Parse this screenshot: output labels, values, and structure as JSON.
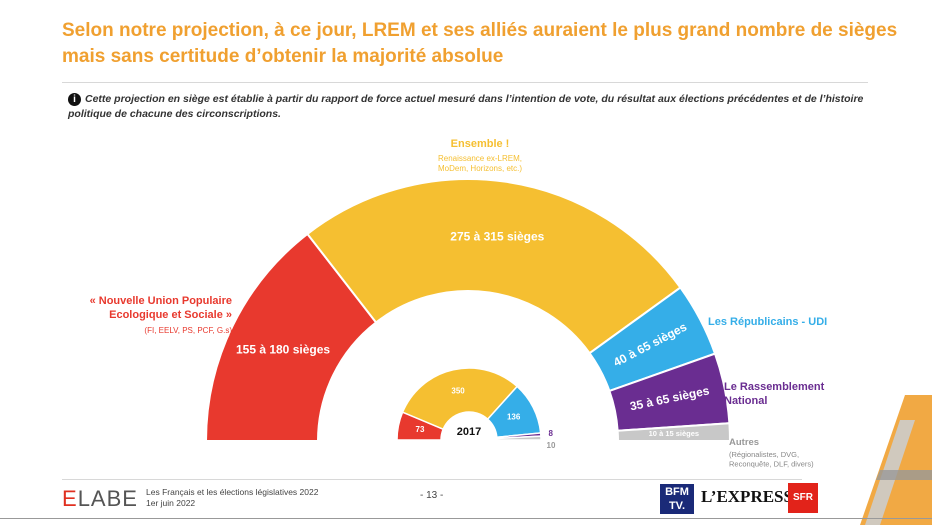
{
  "header": {
    "title_line1": "Selon notre projection, à ce jour, LREM et ses alliés auraient le plus grand nombre de sièges",
    "title_line2": "mais sans certitude d’obtenir la majorité absolue",
    "note_icon": "info-icon",
    "note": "Cette projection en siège est établie à partir du rapport de force actuel mesuré dans l’intention de vote, du résultat aux élections précédentes et de l’histoire politique de chacune des circonscriptions."
  },
  "chart_data": [
    {
      "type": "pie",
      "variant": "hemicycle-projection",
      "total_seats": 577,
      "segments": [
        {
          "name": "« Nouvelle Union Populaire Ecologique et Sociale »",
          "sub": "(FI, EELV, PS, PCF, G.s)",
          "value_label": "155 à 180 sièges",
          "min": 155,
          "max": 180,
          "color": "#e8392e"
        },
        {
          "name": "Ensemble !",
          "sub": "Renaissance ex-LREM, MoDem, Horizons, etc.)",
          "value_label": "275 à 315 sièges",
          "min": 275,
          "max": 315,
          "color": "#f5bf31"
        },
        {
          "name": "Les Républicains - UDI",
          "sub": "",
          "value_label": "40 à 65 sièges",
          "min": 40,
          "max": 65,
          "color": "#35aee8"
        },
        {
          "name": "Le Rassemblement National",
          "sub": "",
          "value_label": "35 à 65 sièges",
          "min": 35,
          "max": 65,
          "color": "#6a2d91"
        },
        {
          "name": "Autres",
          "sub": "(Régionalistes, DVG, Reconquête, DLF, divers)",
          "value_label": "10 à 15 sièges",
          "min": 10,
          "max": 15,
          "color": "#c8c8c8"
        }
      ]
    },
    {
      "type": "pie",
      "variant": "hemicycle-2017",
      "center_label": "2017",
      "segments": [
        {
          "value": 73,
          "color": "#e8392e"
        },
        {
          "value": 350,
          "color": "#f5bf31"
        },
        {
          "value": 136,
          "color": "#35aee8"
        },
        {
          "value": 8,
          "color": "#6a2d91"
        },
        {
          "value": 10,
          "color": "#c8c8c8"
        }
      ]
    }
  ],
  "footer": {
    "brand_e": "E",
    "brand_rest": "LABE",
    "line1": "Les Français et les élections législatives 2022",
    "line2": "1er juin 2022",
    "page": "- 13 -",
    "logo_bfm_1": "BFM",
    "logo_bfm_2": "TV.",
    "logo_express": "L’EXPRESS",
    "logo_sfr": "SFR"
  }
}
